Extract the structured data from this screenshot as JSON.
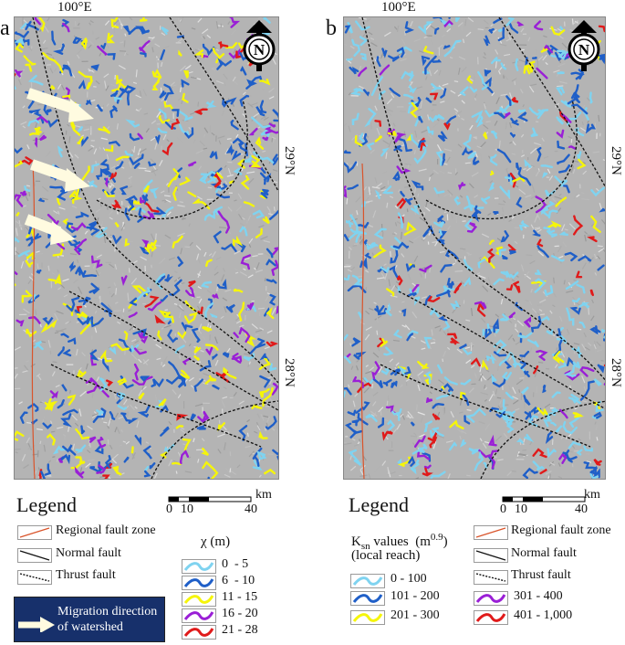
{
  "panel_a": {
    "letter": "a",
    "lon_label": "100°E",
    "lat_top": "29°N",
    "lat_bottom": "28°N",
    "north_label": "N",
    "legend_title": "Legend",
    "scale": {
      "tick0": "0",
      "tick1": "10",
      "tick2": "40",
      "unit": "km"
    },
    "faults": [
      {
        "icon": "regional-fault-symbol",
        "label": "Regional fault zone",
        "color": "#d9542b"
      },
      {
        "icon": "normal-fault-symbol",
        "label": "Normal fault",
        "color": "#111111"
      },
      {
        "icon": "thrust-fault-symbol",
        "label": "Thrust fault",
        "color": "#111111"
      }
    ],
    "migration_label_line1": "Migration direction",
    "migration_label_line2": "of watershed",
    "chi_title": "χ (m)",
    "chi_classes": [
      {
        "label": "0  - 5",
        "color": "#7fd3f0"
      },
      {
        "label": "6  - 10",
        "color": "#1f5fc8"
      },
      {
        "label": "11 - 15",
        "color": "#f5f50a"
      },
      {
        "label": "16 - 20",
        "color": "#9a1fd6"
      },
      {
        "label": "21 - 28",
        "color": "#e01a1a"
      }
    ]
  },
  "panel_b": {
    "letter": "b",
    "lon_label": "100°E",
    "lat_top": "29°N",
    "lat_bottom": "28°N",
    "north_label": "N",
    "legend_title": "Legend",
    "scale": {
      "tick0": "0",
      "tick1": "10",
      "tick2": "40",
      "unit": "km"
    },
    "ksn_title_line1": "K",
    "ksn_title_sub": "sn",
    "ksn_title_rest": " values  (m",
    "ksn_title_sup": "0.9",
    "ksn_title_close": ")",
    "ksn_title_line2": "(local reach)",
    "ksn_classes": [
      {
        "label": "0 - 100",
        "color": "#7fd3f0"
      },
      {
        "label": "101 - 200",
        "color": "#1f5fc8"
      },
      {
        "label": "201 - 300",
        "color": "#f5f50a"
      },
      {
        "label": "301 - 400",
        "color": "#9a1fd6"
      },
      {
        "label": "401 - 1,000",
        "color": "#e01a1a"
      }
    ],
    "faults": [
      {
        "icon": "regional-fault-symbol",
        "label": "Regional fault zone",
        "color": "#d9542b"
      },
      {
        "icon": "normal-fault-symbol",
        "label": "Normal fault",
        "color": "#111111"
      },
      {
        "icon": "thrust-fault-symbol",
        "label": "Thrust fault",
        "color": "#111111"
      }
    ]
  }
}
